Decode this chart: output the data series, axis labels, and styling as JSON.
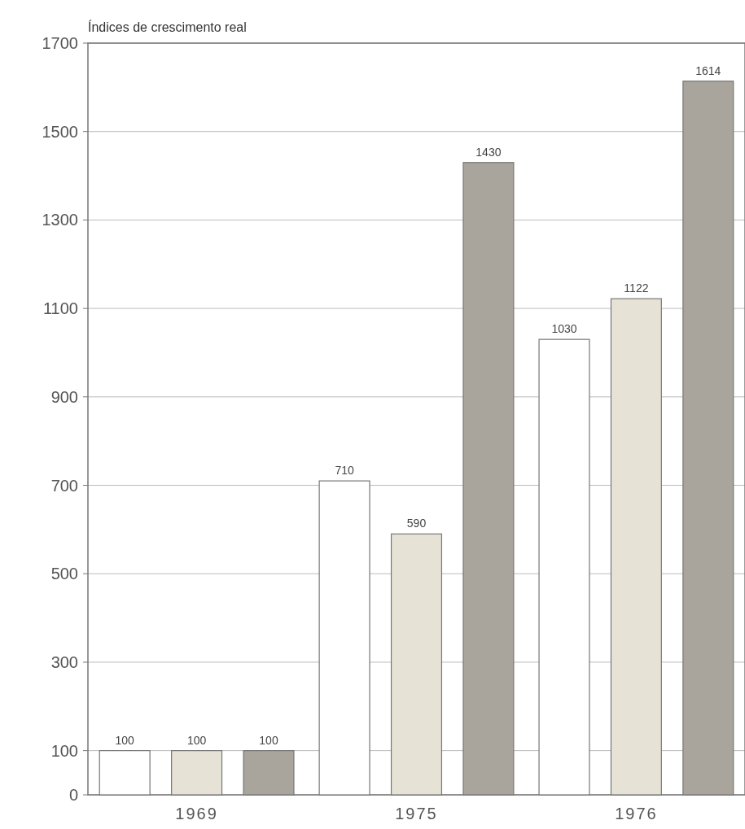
{
  "chart_data": {
    "type": "bar",
    "ylabel": "Índices de crescimento real",
    "categories": [
      "1969",
      "1975",
      "1976"
    ],
    "series": [
      {
        "color": "#ffffff",
        "values": [
          100,
          710,
          1030
        ]
      },
      {
        "color": "#e6e2d6",
        "values": [
          100,
          590,
          1122
        ]
      },
      {
        "color": "#a9a59c",
        "values": [
          100,
          1430,
          1614
        ]
      }
    ],
    "ylim": [
      0,
      1700
    ],
    "yticks": [
      0,
      100,
      300,
      500,
      700,
      900,
      1100,
      1300,
      1500,
      1700
    ],
    "grid": "y",
    "data_labels": true
  }
}
